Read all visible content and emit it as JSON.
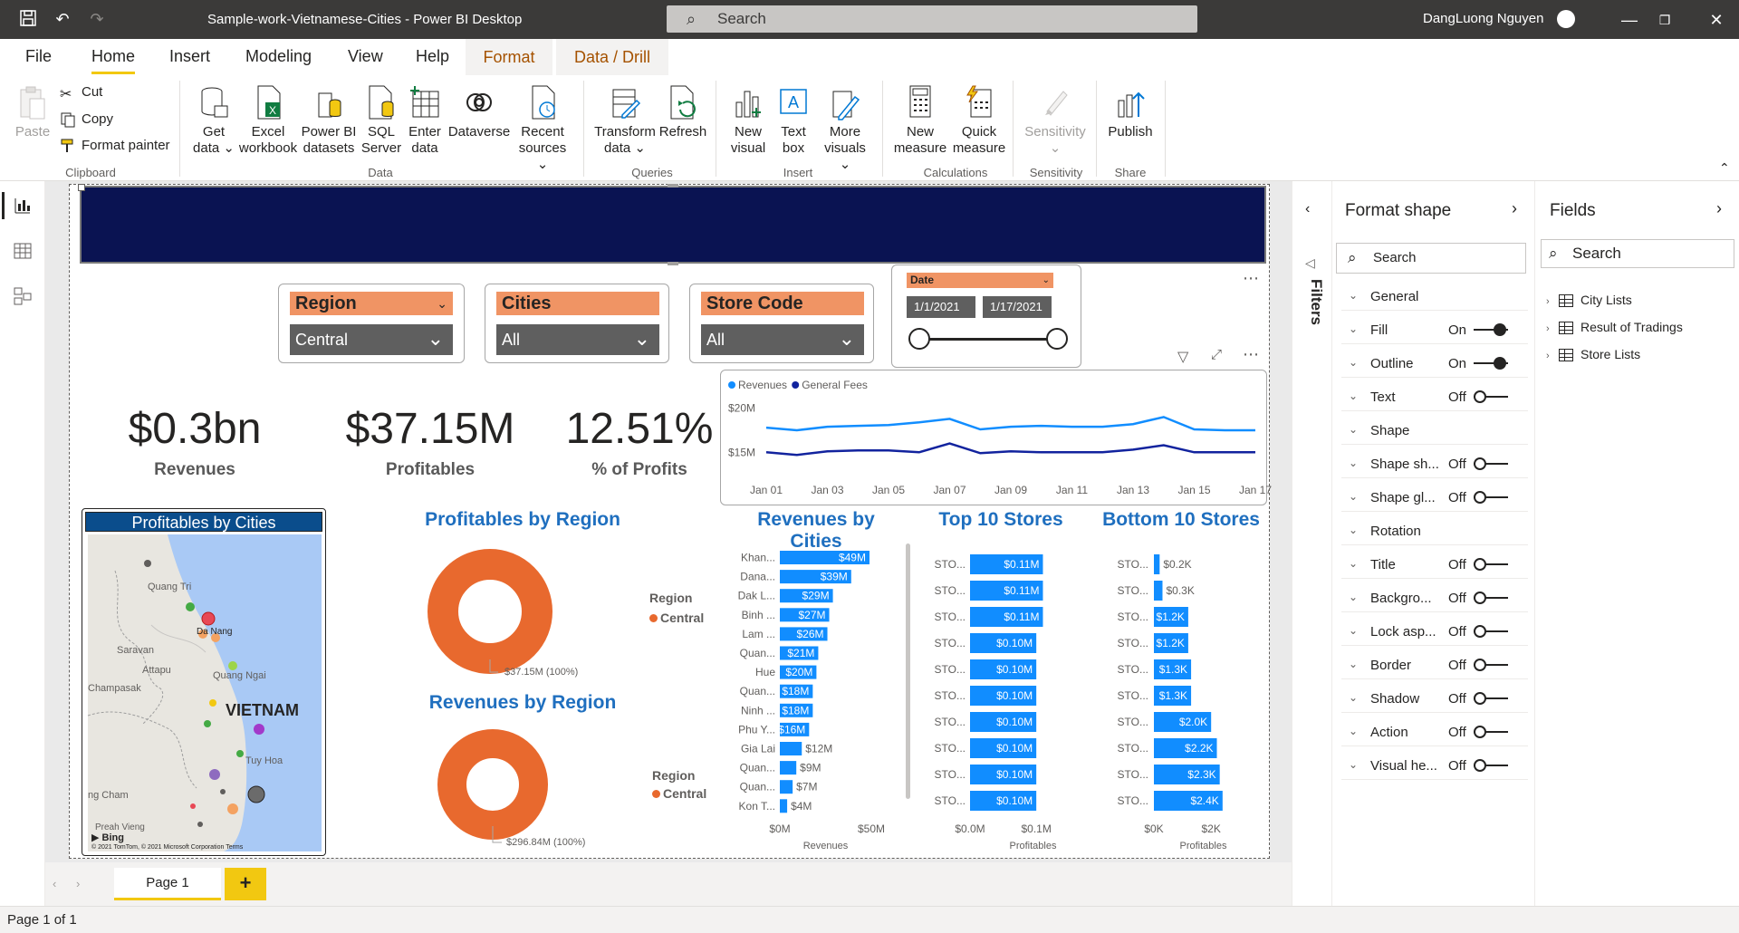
{
  "titlebar": {
    "title": "Sample-work-Vietnamese-Cities - Power BI Desktop",
    "search_placeholder": "Search",
    "user": "DangLuong Nguyen"
  },
  "tabs": [
    "File",
    "Home",
    "Insert",
    "Modeling",
    "View",
    "Help",
    "Format",
    "Data / Drill"
  ],
  "active_tab": "Home",
  "ribbon": {
    "clipboard": {
      "paste": "Paste",
      "cut": "Cut",
      "copy": "Copy",
      "format_painter": "Format painter",
      "group": "Clipboard"
    },
    "data": {
      "get_data": [
        "Get",
        "data"
      ],
      "excel": [
        "Excel",
        "workbook"
      ],
      "pbi_datasets": [
        "Power BI",
        "datasets"
      ],
      "sql": [
        "SQL",
        "Server"
      ],
      "enter_data": [
        "Enter",
        "data"
      ],
      "dataverse": "Dataverse",
      "recent": [
        "Recent",
        "sources"
      ],
      "group": "Data"
    },
    "queries": {
      "transform": [
        "Transform",
        "data"
      ],
      "refresh": "Refresh",
      "group": "Queries"
    },
    "insert": {
      "new_visual": [
        "New",
        "visual"
      ],
      "text_box": [
        "Text",
        "box"
      ],
      "more_visuals": [
        "More",
        "visuals"
      ],
      "group": "Insert"
    },
    "calculations": {
      "new_measure": [
        "New",
        "measure"
      ],
      "quick_measure": [
        "Quick",
        "measure"
      ],
      "group": "Calculations"
    },
    "sensitivity": {
      "label": "Sensitivity",
      "group": "Sensitivity"
    },
    "share": {
      "publish": "Publish",
      "group": "Share"
    }
  },
  "slicers": {
    "region": {
      "title": "Region",
      "value": "Central"
    },
    "cities": {
      "title": "Cities",
      "value": "All"
    },
    "store_code": {
      "title": "Store Code",
      "value": "All"
    },
    "date": {
      "title": "Date",
      "start": "1/1/2021",
      "end": "1/17/2021"
    }
  },
  "kpis": [
    {
      "value": "$0.3bn",
      "label": "Revenues"
    },
    {
      "value": "$37.15M",
      "label": "Profitables"
    },
    {
      "value": "12.51%",
      "label": "% of Profits"
    }
  ],
  "map": {
    "title": "Profitables by Cities",
    "labels": [
      "Quang Tri",
      "Da Nang",
      "Saravan",
      "Attapu",
      "Quang Ngai",
      "Champasak",
      "VIETNAM",
      "Tuy Hoa",
      "ng Cham",
      "Preah Vieng"
    ],
    "bing": "Bing",
    "copyright": "© 2021 TomTom, © 2021 Microsoft Corporation",
    "terms": "Terms"
  },
  "donut_profit": {
    "title": "Profitables by Region",
    "legend_title": "Region",
    "legend_item": "Central",
    "label": "$37.15M (100%)",
    "color": "#e8692e"
  },
  "donut_revenue": {
    "title": "Revenues by Region",
    "legend_title": "Region",
    "legend_item": "Central",
    "label": "$296.84M (100%)",
    "color": "#e8692e"
  },
  "chart_data": [
    {
      "type": "line",
      "x": [
        "Jan 01",
        "Jan 02",
        "Jan 03",
        "Jan 04",
        "Jan 05",
        "Jan 06",
        "Jan 07",
        "Jan 08",
        "Jan 09",
        "Jan 10",
        "Jan 11",
        "Jan 12",
        "Jan 13",
        "Jan 14",
        "Jan 15",
        "Jan 16",
        "Jan 17"
      ],
      "x_ticks": [
        "Jan 01",
        "Jan 03",
        "Jan 05",
        "Jan 07",
        "Jan 09",
        "Jan 11",
        "Jan 13",
        "Jan 15",
        "Jan 17"
      ],
      "y_ticks": [
        "$20M",
        "$15M"
      ],
      "ylim": [
        14,
        21
      ],
      "series": [
        {
          "name": "Revenues",
          "color": "#118dff",
          "values": [
            17.8,
            17.5,
            17.9,
            18.0,
            18.1,
            18.4,
            18.8,
            17.6,
            17.9,
            18.0,
            17.9,
            17.9,
            18.2,
            19.0,
            17.6,
            17.5,
            17.5
          ]
        },
        {
          "name": "General Fees",
          "color": "#12239e",
          "values": [
            15.0,
            14.7,
            15.1,
            15.2,
            15.2,
            15.0,
            16.0,
            14.9,
            15.1,
            15.0,
            15.0,
            15.0,
            15.3,
            15.8,
            15.0,
            15.0,
            15.0
          ]
        }
      ]
    },
    {
      "type": "bar",
      "title": "Revenues by Cities",
      "categories": [
        "Khan...",
        "Dana...",
        "Dak L...",
        "Binh ...",
        "Lam ...",
        "Quan...",
        "Hue",
        "Quan...",
        "Ninh ...",
        "Phu Y...",
        "Gia Lai",
        "Quan...",
        "Quan...",
        "Kon T..."
      ],
      "values": [
        49,
        39,
        29,
        27,
        26,
        21,
        20,
        18,
        18,
        16,
        12,
        9,
        7,
        4
      ],
      "labels": [
        "$49M",
        "$39M",
        "$29M",
        "$27M",
        "$26M",
        "$21M",
        "$20M",
        "$18M",
        "$18M",
        "$16M",
        "$12M",
        "$9M",
        "$7M",
        "$4M"
      ],
      "x_ticks": [
        "$0M",
        "$50M"
      ],
      "xlim": [
        0,
        50
      ],
      "xlabel": "Revenues",
      "color": "#118dff"
    },
    {
      "type": "bar",
      "title": "Top 10 Stores",
      "categories": [
        "STO...",
        "STO...",
        "STO...",
        "STO...",
        "STO...",
        "STO...",
        "STO...",
        "STO...",
        "STO...",
        "STO..."
      ],
      "values": [
        0.11,
        0.11,
        0.11,
        0.1,
        0.1,
        0.1,
        0.1,
        0.1,
        0.1,
        0.1
      ],
      "labels": [
        "$0.11M",
        "$0.11M",
        "$0.11M",
        "$0.10M",
        "$0.10M",
        "$0.10M",
        "$0.10M",
        "$0.10M",
        "$0.10M",
        "$0.10M"
      ],
      "x_ticks": [
        "$0.0M",
        "$0.1M"
      ],
      "xlim": [
        0,
        0.19
      ],
      "xlabel": "Profitables",
      "color": "#118dff"
    },
    {
      "type": "bar",
      "title": "Bottom 10 Stores",
      "categories": [
        "STO...",
        "STO...",
        "STO...",
        "STO...",
        "STO...",
        "STO...",
        "STO...",
        "STO...",
        "STO...",
        "STO..."
      ],
      "values": [
        0.2,
        0.3,
        1.2,
        1.2,
        1.3,
        1.3,
        2.0,
        2.2,
        2.3,
        2.4
      ],
      "labels": [
        "$0.2K",
        "$0.3K",
        "$1.2K",
        "$1.2K",
        "$1.3K",
        "$1.3K",
        "$2.0K",
        "$2.2K",
        "$2.3K",
        "$2.4K"
      ],
      "x_ticks": [
        "$0K",
        "$2K"
      ],
      "xlim": [
        0,
        3.45
      ],
      "xlabel": "Profitables",
      "color": "#118dff"
    }
  ],
  "filters_label": "Filters",
  "format_pane": {
    "title": "Format shape",
    "search": "Search",
    "rows": [
      {
        "label": "General",
        "state": ""
      },
      {
        "label": "Fill",
        "state": "On"
      },
      {
        "label": "Outline",
        "state": "On"
      },
      {
        "label": "Text",
        "state": "Off"
      },
      {
        "label": "Shape",
        "state": ""
      },
      {
        "label": "Shape sh...",
        "state": "Off"
      },
      {
        "label": "Shape gl...",
        "state": "Off"
      },
      {
        "label": "Rotation",
        "state": ""
      },
      {
        "label": "Title",
        "state": "Off"
      },
      {
        "label": "Backgro...",
        "state": "Off"
      },
      {
        "label": "Lock asp...",
        "state": "Off"
      },
      {
        "label": "Border",
        "state": "Off"
      },
      {
        "label": "Shadow",
        "state": "Off"
      },
      {
        "label": "Action",
        "state": "Off"
      },
      {
        "label": "Visual he...",
        "state": "Off"
      }
    ]
  },
  "fields_pane": {
    "title": "Fields",
    "search": "Search",
    "tables": [
      "City Lists",
      "Result of Tradings",
      "Store Lists"
    ]
  },
  "page_tabs": {
    "page": "Page 1",
    "add": "+"
  },
  "status": "Page 1 of 1"
}
